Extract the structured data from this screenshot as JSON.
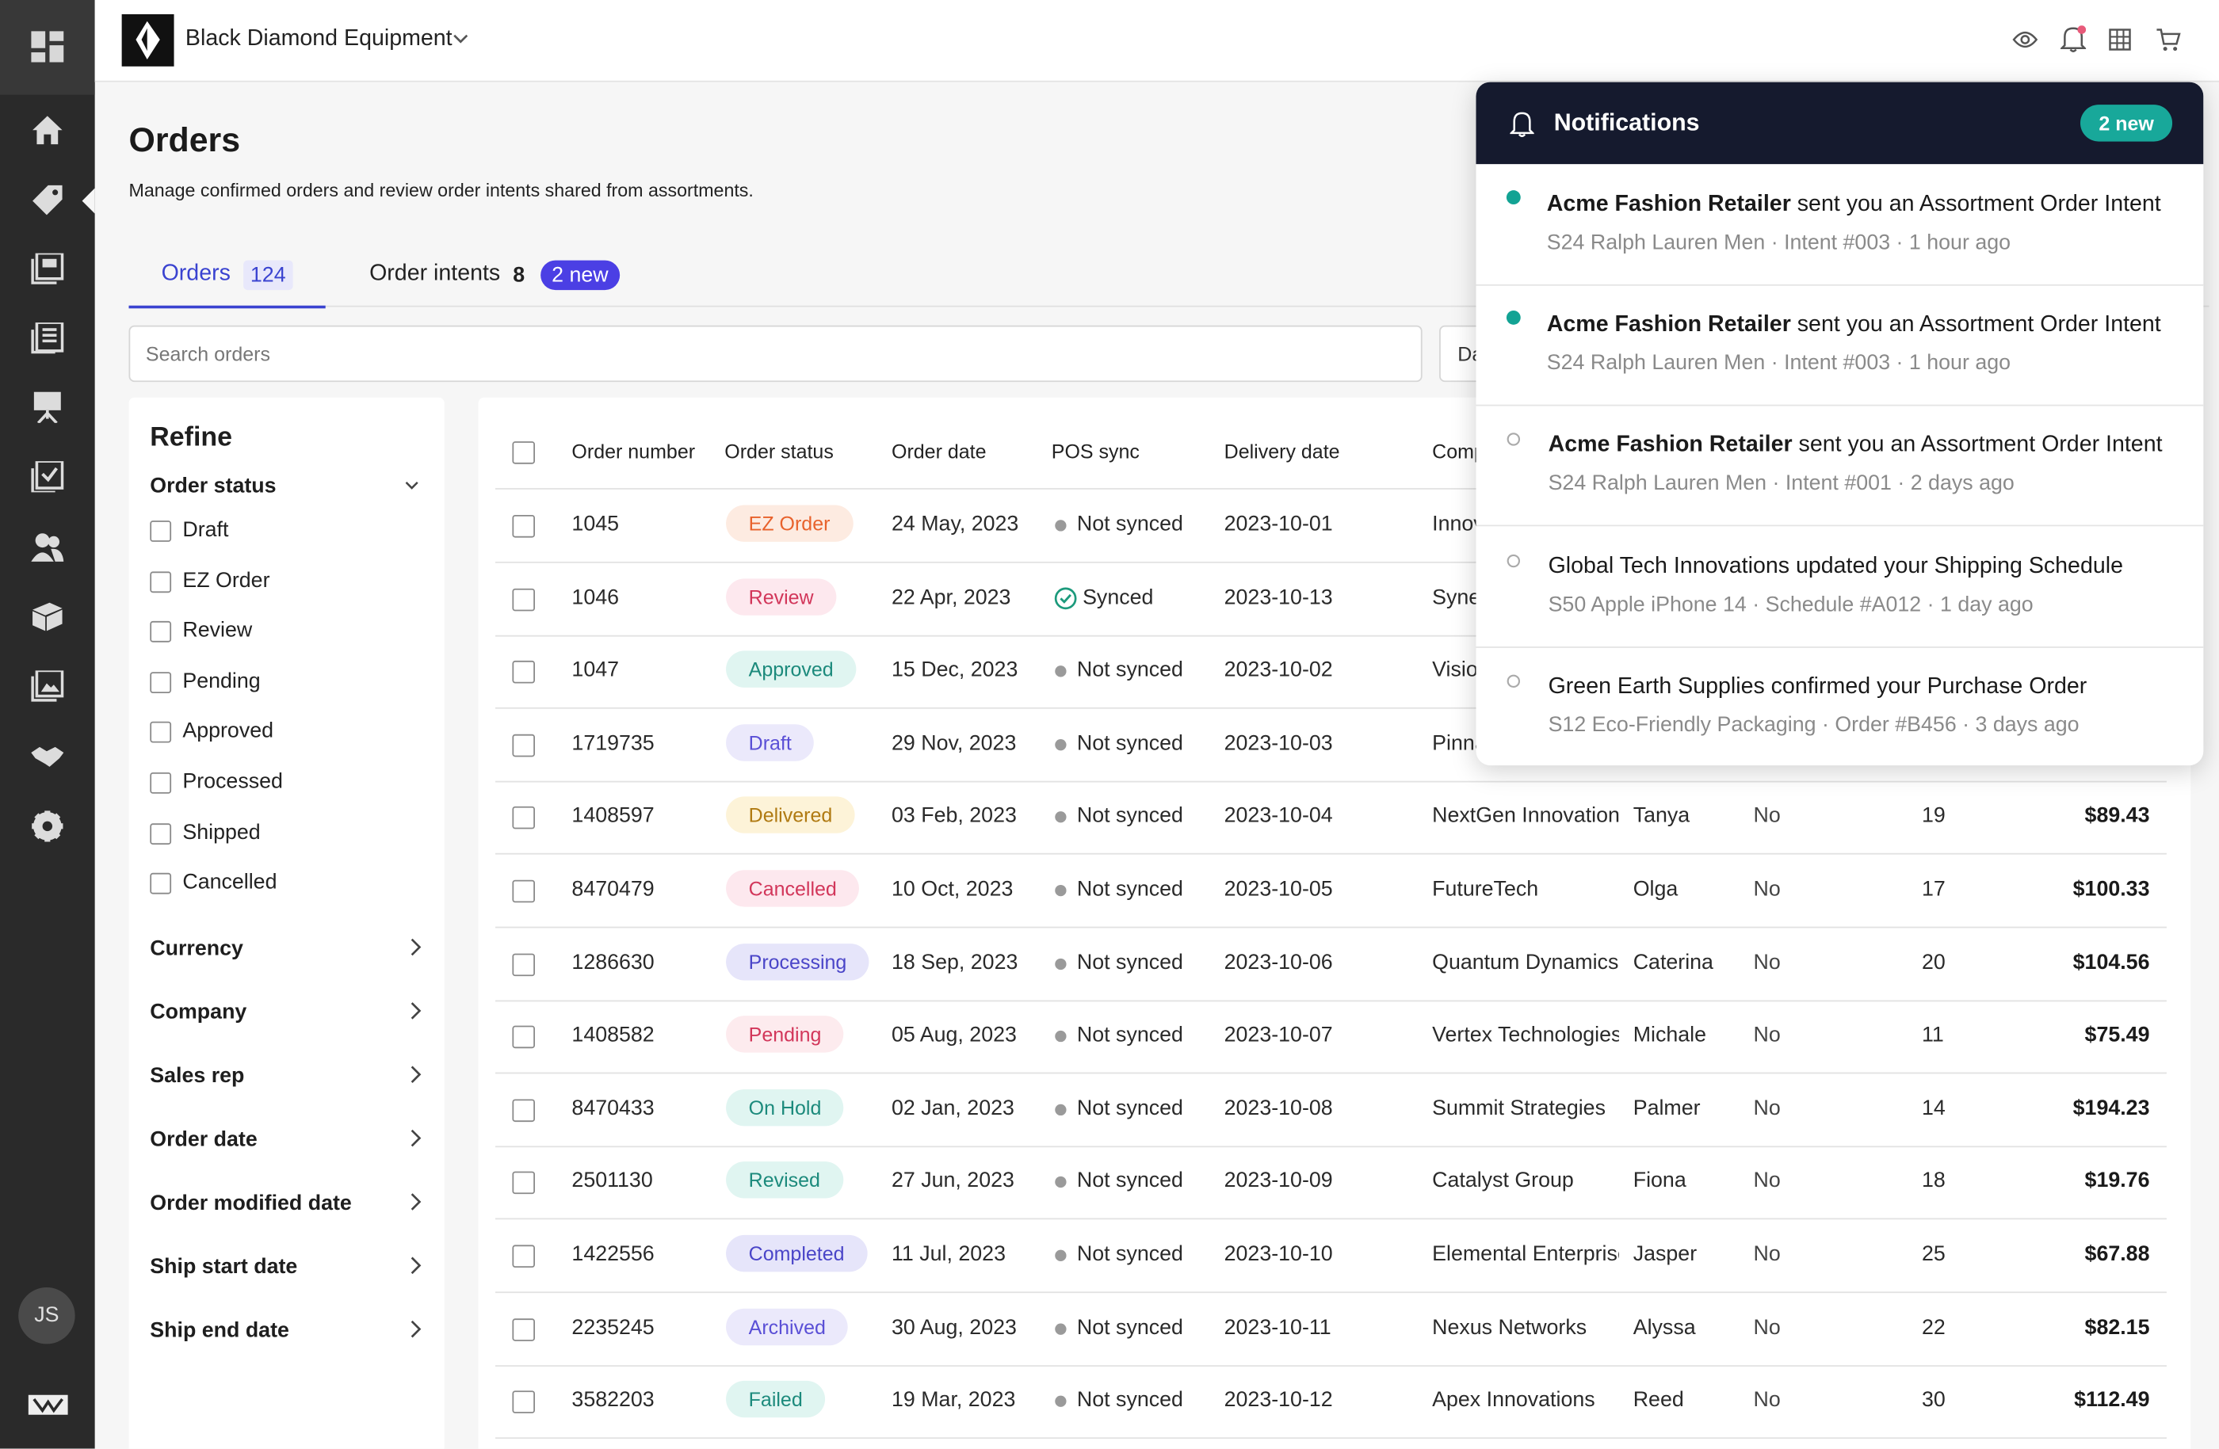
{
  "header": {
    "company": "Black Diamond Equipment"
  },
  "sidebar": {
    "avatar": "JS"
  },
  "page": {
    "title": "Orders",
    "subtitle": "Manage confirmed orders and review order intents shared from assortments.",
    "tabs": [
      {
        "label": "Orders",
        "count": 124,
        "active": true
      },
      {
        "label": "Order intents",
        "count": 8,
        "badge": "2 new",
        "active": false
      }
    ],
    "search_placeholder": "Search orders",
    "side_button": "Da"
  },
  "refine": {
    "title": "Refine",
    "open_section": "Order status",
    "statuses": [
      "Draft",
      "EZ Order",
      "Review",
      "Pending",
      "Approved",
      "Processed",
      "Shipped",
      "Cancelled"
    ],
    "sections": [
      "Currency",
      "Company",
      "Sales rep",
      "Order date",
      "Order modified date",
      "Ship start date",
      "Ship end date"
    ]
  },
  "table": {
    "columns": [
      "Order number",
      "Order status",
      "Order date",
      "POS sync",
      "Delivery date",
      "Comp"
    ],
    "rows": [
      {
        "number": 1045,
        "status": {
          "label": "EZ Order",
          "color": "#e8622c",
          "bg": "#fdebe1"
        },
        "date": "24 May, 2023",
        "pos": {
          "label": "Not synced",
          "icon": "dot"
        },
        "delivery": "2023-10-01",
        "company": "Innov"
      },
      {
        "number": 1046,
        "status": {
          "label": "Review",
          "color": "#d2365a",
          "bg": "#fde8ee"
        },
        "date": "22 Apr, 2023",
        "pos": {
          "label": "Synced",
          "icon": "check"
        },
        "delivery": "2023-10-13",
        "company": "Syne"
      },
      {
        "number": 1047,
        "status": {
          "label": "Approved",
          "color": "#1c8a7c",
          "bg": "#e0f5f1"
        },
        "date": "15 Dec, 2023",
        "pos": {
          "label": "Not synced",
          "icon": "dot"
        },
        "delivery": "2023-10-02",
        "company": "Visio"
      },
      {
        "number": 1719735,
        "status": {
          "label": "Draft",
          "color": "#5a4fd6",
          "bg": "#ebe9fb"
        },
        "date": "29 Nov, 2023",
        "pos": {
          "label": "Not synced",
          "icon": "dot"
        },
        "delivery": "2023-10-03",
        "company": "Pinna"
      },
      {
        "number": 1408597,
        "status": {
          "label": "Delivered",
          "color": "#b07a12",
          "bg": "#fdf3d8"
        },
        "date": "03 Feb, 2023",
        "pos": {
          "label": "Not synced",
          "icon": "dot"
        },
        "delivery": "2023-10-04",
        "company": "NextGen Innovation",
        "contact": "Tanya",
        "flag": "No",
        "qty": 19,
        "amount": "$89.43"
      },
      {
        "number": 8470479,
        "status": {
          "label": "Cancelled",
          "color": "#d2365a",
          "bg": "#fde8ee"
        },
        "date": "10 Oct, 2023",
        "pos": {
          "label": "Not synced",
          "icon": "dot"
        },
        "delivery": "2023-10-05",
        "company": "FutureTech",
        "contact": "Olga",
        "flag": "No",
        "qty": 17,
        "amount": "$100.33"
      },
      {
        "number": 1286630,
        "status": {
          "label": "Processing",
          "color": "#4a45c8",
          "bg": "#e6e5fa"
        },
        "date": "18 Sep, 2023",
        "pos": {
          "label": "Not synced",
          "icon": "dot"
        },
        "delivery": "2023-10-06",
        "company": "Quantum Dynamics",
        "contact": "Caterina",
        "flag": "No",
        "qty": 20,
        "amount": "$104.56"
      },
      {
        "number": 1408582,
        "status": {
          "label": "Pending",
          "color": "#d2365a",
          "bg": "#fdebee"
        },
        "date": "05 Aug, 2023",
        "pos": {
          "label": "Not synced",
          "icon": "dot"
        },
        "delivery": "2023-10-07",
        "company": "Vertex Technologies",
        "contact": "Michale",
        "flag": "No",
        "qty": 11,
        "amount": "$75.49"
      },
      {
        "number": 8470433,
        "status": {
          "label": "On Hold",
          "color": "#1c8a7c",
          "bg": "#e0f5f1"
        },
        "date": "02 Jan, 2023",
        "pos": {
          "label": "Not synced",
          "icon": "dot"
        },
        "delivery": "2023-10-08",
        "company": "Summit Strategies",
        "contact": "Palmer",
        "flag": "No",
        "qty": 14,
        "amount": "$194.23"
      },
      {
        "number": 2501130,
        "status": {
          "label": "Revised",
          "color": "#1c8a7c",
          "bg": "#e0f5f1"
        },
        "date": "27 Jun, 2023",
        "pos": {
          "label": "Not synced",
          "icon": "dot"
        },
        "delivery": "2023-10-09",
        "company": "Catalyst Group",
        "contact": "Fiona",
        "flag": "No",
        "qty": 18,
        "amount": "$19.76"
      },
      {
        "number": 1422556,
        "status": {
          "label": "Completed",
          "color": "#4a45c8",
          "bg": "#e6e5fa"
        },
        "date": "11 Jul, 2023",
        "pos": {
          "label": "Not synced",
          "icon": "dot"
        },
        "delivery": "2023-10-10",
        "company": "Elemental Enterprise",
        "contact": "Jasper",
        "flag": "No",
        "qty": 25,
        "amount": "$67.88"
      },
      {
        "number": 2235245,
        "status": {
          "label": "Archived",
          "color": "#5a4fd6",
          "bg": "#ebe9fb"
        },
        "date": "30 Aug, 2023",
        "pos": {
          "label": "Not synced",
          "icon": "dot"
        },
        "delivery": "2023-10-11",
        "company": "Nexus Networks",
        "contact": "Alyssa",
        "flag": "No",
        "qty": 22,
        "amount": "$82.15"
      },
      {
        "number": 3582203,
        "status": {
          "label": "Failed",
          "color": "#1c8a7c",
          "bg": "#e0f5f1"
        },
        "date": "19 Mar, 2023",
        "pos": {
          "label": "Not synced",
          "icon": "dot"
        },
        "delivery": "2023-10-12",
        "company": "Apex Innovations",
        "contact": "Reed",
        "flag": "No",
        "qty": 30,
        "amount": "$112.49"
      }
    ]
  },
  "notifications": {
    "title": "Notifications",
    "badge": "2 new",
    "items": [
      {
        "sender": "Acme Fashion Retailer",
        "action": "sent you an Assortment Order Intent",
        "meta": "S24 Ralph Lauren Men · Intent #003 · 1 hour ago",
        "unread": true
      },
      {
        "sender": "Acme Fashion Retailer",
        "action": "sent you an Assortment Order Intent",
        "meta": "S24 Ralph Lauren Men · Intent #003 · 1 hour ago",
        "unread": true
      },
      {
        "sender": "Acme Fashion Retailer",
        "action": "sent you an Assortment Order Intent",
        "meta": "S24 Ralph Lauren Men · Intent #001 · 2 days ago",
        "unread": false
      },
      {
        "text": "Global Tech Innovations updated your Shipping Schedule",
        "meta": "S50 Apple iPhone 14 · Schedule #A012 · 1 day ago",
        "unread": false
      },
      {
        "text": "Green Earth Supplies confirmed your Purchase Order",
        "meta": "S12 Eco-Friendly Packaging · Order #B456 · 3 days ago",
        "unread": false
      }
    ]
  }
}
